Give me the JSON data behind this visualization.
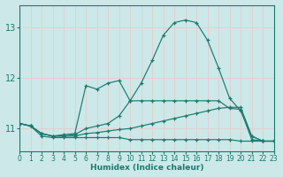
{
  "xlabel": "Humidex (Indice chaleur)",
  "bg_color": "#cce8e8",
  "grid_color": "#f0f0f0",
  "line_color": "#1a7a6e",
  "xlim": [
    0,
    23
  ],
  "ylim": [
    10.55,
    13.45
  ],
  "yticks": [
    11,
    12,
    13
  ],
  "xticks": [
    0,
    1,
    2,
    3,
    4,
    5,
    6,
    7,
    8,
    9,
    10,
    11,
    12,
    13,
    14,
    15,
    16,
    17,
    18,
    19,
    20,
    21,
    22,
    23
  ],
  "lines": [
    {
      "x": [
        0,
        1,
        2,
        3,
        4,
        5,
        6,
        7,
        8,
        9,
        10,
        11,
        12,
        13,
        14,
        15,
        16,
        17,
        18,
        19,
        20,
        21,
        22,
        23
      ],
      "y": [
        11.1,
        11.05,
        10.9,
        10.85,
        10.85,
        10.88,
        11.0,
        11.05,
        11.1,
        11.25,
        11.55,
        11.9,
        12.35,
        12.85,
        13.1,
        13.15,
        13.1,
        12.75,
        12.2,
        11.6,
        11.35,
        10.85,
        10.75,
        10.75
      ]
    },
    {
      "x": [
        0,
        1,
        2,
        3,
        4,
        5,
        6,
        7,
        8,
        9,
        10,
        11,
        12,
        13,
        14,
        15,
        16,
        17,
        18,
        19,
        20,
        21,
        22,
        23
      ],
      "y": [
        11.1,
        11.05,
        10.9,
        10.85,
        10.88,
        10.9,
        11.85,
        11.78,
        11.9,
        11.95,
        11.55,
        11.55,
        11.55,
        11.55,
        11.55,
        11.55,
        11.55,
        11.55,
        11.55,
        11.4,
        11.38,
        10.78,
        10.75,
        10.75
      ]
    },
    {
      "x": [
        0,
        1,
        2,
        3,
        4,
        5,
        6,
        7,
        8,
        9,
        10,
        11,
        12,
        13,
        14,
        15,
        16,
        17,
        18,
        19,
        20,
        21,
        22,
        23
      ],
      "y": [
        11.1,
        11.05,
        10.9,
        10.85,
        10.85,
        10.85,
        10.9,
        10.92,
        10.95,
        10.98,
        11.0,
        11.05,
        11.1,
        11.15,
        11.2,
        11.25,
        11.3,
        11.35,
        11.4,
        11.42,
        11.42,
        10.85,
        10.75,
        10.75
      ]
    },
    {
      "x": [
        0,
        1,
        2,
        3,
        4,
        5,
        6,
        7,
        8,
        9,
        10,
        11,
        12,
        13,
        14,
        15,
        16,
        17,
        18,
        19,
        20,
        21,
        22,
        23
      ],
      "y": [
        11.1,
        11.05,
        10.85,
        10.82,
        10.82,
        10.82,
        10.82,
        10.82,
        10.82,
        10.82,
        10.78,
        10.78,
        10.78,
        10.78,
        10.78,
        10.78,
        10.78,
        10.78,
        10.78,
        10.78,
        10.75,
        10.75,
        10.75,
        10.75
      ]
    }
  ]
}
